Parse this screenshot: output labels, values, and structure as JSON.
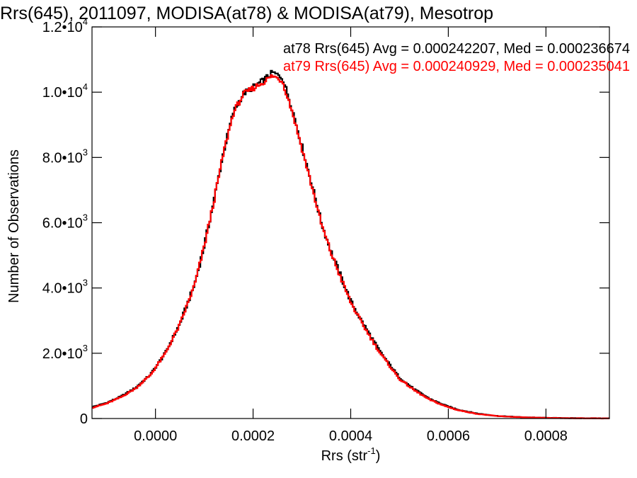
{
  "chart_data": {
    "type": "line",
    "step": true,
    "title": "Rrs(645), 2011097, MODISA(at78) & MODISA(at79), Mesotrop",
    "xlabel": "Rrs (str",
    "xlabel_sup": "-1",
    "xlabel_suffix": ")",
    "ylabel": "Number of Observations",
    "xlim": [
      -0.00013,
      0.00093
    ],
    "ylim": [
      0,
      12000
    ],
    "x_ticks": [
      {
        "value": 0.0,
        "label": "0.0000"
      },
      {
        "value": 0.0002,
        "label": "0.0002"
      },
      {
        "value": 0.0004,
        "label": "0.0004"
      },
      {
        "value": 0.0006,
        "label": "0.0006"
      },
      {
        "value": 0.0008,
        "label": "0.0008"
      }
    ],
    "y_ticks": [
      {
        "value": 0,
        "label": "0",
        "exp": ""
      },
      {
        "value": 2000,
        "label": "2.0•10",
        "exp": "3"
      },
      {
        "value": 4000,
        "label": "4.0•10",
        "exp": "3"
      },
      {
        "value": 6000,
        "label": "6.0•10",
        "exp": "3"
      },
      {
        "value": 8000,
        "label": "8.0•10",
        "exp": "3"
      },
      {
        "value": 10000,
        "label": "1.0•10",
        "exp": "4"
      },
      {
        "value": 12000,
        "label": "1.2•10",
        "exp": "4"
      }
    ],
    "legend_position": "top-right",
    "x": [
      -0.00013,
      -0.0001,
      -7e-05,
      -4e-05,
      -1e-05,
      2e-05,
      5e-05,
      8e-05,
      0.0001,
      0.00012,
      0.00014,
      0.00016,
      0.00018,
      0.0002,
      0.00022,
      0.00024,
      0.00026,
      0.00028,
      0.0003,
      0.00032,
      0.00034,
      0.00036,
      0.00038,
      0.0004,
      0.00042,
      0.00044,
      0.00046,
      0.00048,
      0.0005,
      0.00053,
      0.00056,
      0.00059,
      0.00062,
      0.00066,
      0.0007,
      0.00075,
      0.0008,
      0.00086,
      0.00093
    ],
    "series": [
      {
        "name": "at78",
        "label": "at78 Rrs(645) Avg = 0.000242207, Med = 0.000236674",
        "color": "#000000",
        "values": [
          350,
          480,
          680,
          950,
          1350,
          2000,
          2900,
          4100,
          5300,
          6700,
          8200,
          9400,
          9950,
          10150,
          10350,
          10600,
          10450,
          9500,
          8350,
          7200,
          6000,
          5100,
          4350,
          3600,
          3050,
          2550,
          2050,
          1650,
          1250,
          900,
          620,
          420,
          270,
          150,
          80,
          40,
          20,
          10,
          5
        ]
      },
      {
        "name": "at79",
        "label": "at79 Rrs(645) Avg = 0.000240929, Med = 0.000235041",
        "color": "#ff0000",
        "values": [
          330,
          460,
          660,
          930,
          1340,
          1990,
          2880,
          4080,
          5280,
          6680,
          8180,
          9380,
          9930,
          10120,
          10300,
          10500,
          10350,
          9420,
          8280,
          7130,
          5950,
          5060,
          4300,
          3560,
          3000,
          2500,
          2010,
          1610,
          1210,
          870,
          590,
          400,
          255,
          140,
          75,
          37,
          18,
          9,
          4
        ]
      }
    ]
  }
}
